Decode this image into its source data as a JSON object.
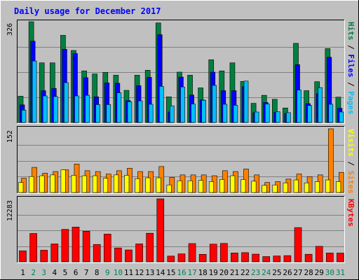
{
  "chart_data": [
    {
      "type": "bar",
      "title": "Daily usage for December 2017",
      "ymax_label": "326",
      "categories": [
        "1",
        "2",
        "3",
        "4",
        "5",
        "6",
        "7",
        "8",
        "9",
        "10",
        "11",
        "12",
        "13",
        "14",
        "15",
        "16",
        "17",
        "18",
        "19",
        "20",
        "21",
        "22",
        "23",
        "24",
        "25",
        "26",
        "27",
        "28",
        "29",
        "30",
        "31"
      ],
      "weekend_days": [
        2,
        3,
        9,
        10,
        16,
        17,
        23,
        24,
        30,
        31
      ],
      "ylim": [
        0,
        326
      ],
      "right_labels": [
        "Pages",
        "Files",
        "Hits"
      ],
      "series": [
        {
          "name": "Hits",
          "color": "#008040",
          "values": [
            85,
            326,
            193,
            193,
            282,
            233,
            167,
            157,
            162,
            153,
            104,
            153,
            169,
            322,
            83,
            163,
            153,
            112,
            203,
            167,
            193,
            133,
            62,
            88,
            75,
            47,
            256,
            103,
            132,
            239,
            82
          ]
        },
        {
          "name": "Files",
          "color": "#0000ff",
          "values": [
            57,
            263,
            103,
            110,
            237,
            223,
            145,
            83,
            128,
            127,
            71,
            119,
            146,
            284,
            34,
            147,
            89,
            73,
            163,
            103,
            103,
            116,
            32,
            65,
            33,
            29,
            187,
            61,
            93,
            211,
            46
          ]
        },
        {
          "name": "Pages",
          "color": "#00c0ff",
          "values": [
            40,
            199,
            86,
            84,
            129,
            86,
            88,
            58,
            58,
            96,
            67,
            70,
            59,
            117,
            54,
            115,
            60,
            72,
            120,
            59,
            56,
            134,
            34,
            60,
            35,
            32,
            105,
            55,
            113,
            59,
            34
          ]
        }
      ]
    },
    {
      "type": "bar",
      "ymax_label": "152",
      "categories": [
        "1",
        "2",
        "3",
        "4",
        "5",
        "6",
        "7",
        "8",
        "9",
        "10",
        "11",
        "12",
        "13",
        "14",
        "15",
        "16",
        "17",
        "18",
        "19",
        "20",
        "21",
        "22",
        "23",
        "24",
        "25",
        "26",
        "27",
        "28",
        "29",
        "30",
        "31"
      ],
      "ylim": [
        0,
        152
      ],
      "right_labels": [
        "Sites",
        "Visits"
      ],
      "series": [
        {
          "name": "Visits",
          "color": "#ffff00",
          "values": [
            24,
            38,
            40,
            42,
            54,
            41,
            40,
            40,
            34,
            42,
            41,
            33,
            35,
            35,
            18,
            28,
            28,
            29,
            26,
            31,
            40,
            31,
            27,
            17,
            18,
            23,
            30,
            23,
            26,
            30,
            26
          ]
        },
        {
          "name": "Sites",
          "color": "#ff8000",
          "values": [
            34,
            60,
            46,
            50,
            54,
            68,
            52,
            50,
            44,
            52,
            58,
            50,
            50,
            62,
            36,
            42,
            42,
            42,
            40,
            52,
            50,
            56,
            42,
            24,
            26,
            32,
            44,
            38,
            42,
            152,
            48
          ]
        }
      ]
    },
    {
      "type": "bar",
      "ymax_label": "12283",
      "categories": [
        "1",
        "2",
        "3",
        "4",
        "5",
        "6",
        "7",
        "8",
        "9",
        "10",
        "11",
        "12",
        "13",
        "14",
        "15",
        "16",
        "17",
        "18",
        "19",
        "20",
        "21",
        "22",
        "23",
        "24",
        "25",
        "26",
        "27",
        "28",
        "29",
        "30",
        "31"
      ],
      "ylim": [
        0,
        12283
      ],
      "right_labels": [
        "KBytes"
      ],
      "series": [
        {
          "name": "KBytes",
          "color": "#ff0000",
          "values": [
            2146,
            5524,
            2262,
            3487,
            6327,
            6773,
            5964,
            3381,
            5401,
            2700,
            2318,
            3495,
            5572,
            12283,
            1114,
            1544,
            3557,
            1460,
            3445,
            3583,
            1732,
            1794,
            1494,
            1023,
            1136,
            1208,
            6676,
            1473,
            3018,
            1717,
            1703
          ]
        }
      ]
    }
  ],
  "colors": {
    "background": "#c0c0c0",
    "title": "#0000ff",
    "hits": "#008040",
    "files": "#0000ff",
    "pages": "#00c0ff",
    "visits": "#ffff00",
    "sites": "#ff8000",
    "kbytes": "#ff0000",
    "weekday_label": "#000000",
    "weekend_label": "#00805c"
  }
}
